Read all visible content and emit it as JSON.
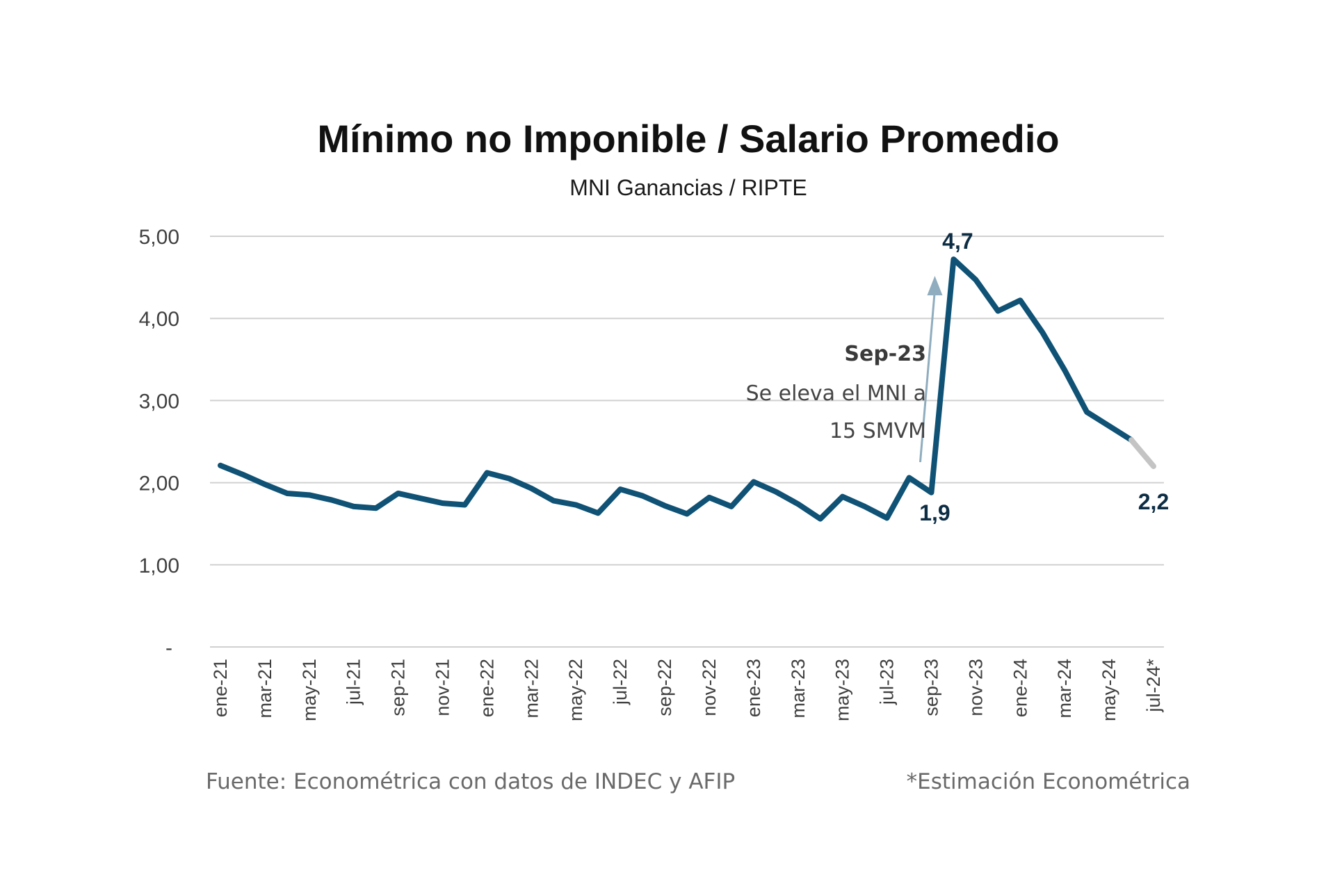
{
  "chart_data": {
    "type": "line",
    "title": "Mínimo no Imponible / Salario Promedio",
    "subtitle": "MNI Ganancias / RIPTE",
    "xlabel": "",
    "ylabel": "",
    "ylim": [
      0,
      5
    ],
    "grid": true,
    "legend": "none",
    "y_ticks": [
      {
        "value": 0,
        "label": "-"
      },
      {
        "value": 1,
        "label": "1,00"
      },
      {
        "value": 2,
        "label": "2,00"
      },
      {
        "value": 3,
        "label": "3,00"
      },
      {
        "value": 4,
        "label": "4,00"
      },
      {
        "value": 5,
        "label": "5,00"
      }
    ],
    "x": [
      "ene-21",
      "feb-21",
      "mar-21",
      "abr-21",
      "may-21",
      "jun-21",
      "jul-21",
      "ago-21",
      "sep-21",
      "oct-21",
      "nov-21",
      "dic-21",
      "ene-22",
      "feb-22",
      "mar-22",
      "abr-22",
      "may-22",
      "jun-22",
      "jul-22",
      "ago-22",
      "sep-22",
      "oct-22",
      "nov-22",
      "dic-22",
      "ene-23",
      "feb-23",
      "mar-23",
      "abr-23",
      "may-23",
      "jun-23",
      "jul-23",
      "ago-23",
      "sep-23",
      "oct-23",
      "nov-23",
      "dic-23",
      "ene-24",
      "feb-24",
      "mar-24",
      "abr-24",
      "may-24",
      "jun-24",
      "jul-24*"
    ],
    "x_tick_labels": [
      "ene-21",
      "mar-21",
      "may-21",
      "jul-21",
      "sep-21",
      "nov-21",
      "ene-22",
      "mar-22",
      "may-22",
      "jul-22",
      "sep-22",
      "nov-22",
      "ene-23",
      "mar-23",
      "may-23",
      "jul-23",
      "sep-23",
      "nov-23",
      "ene-24",
      "mar-24",
      "may-24",
      "jul-24*"
    ],
    "series": [
      {
        "name": "MNI Ganancias / RIPTE",
        "color": "#0f5275",
        "values": [
          2.21,
          2.1,
          1.98,
          1.87,
          1.85,
          1.79,
          1.71,
          1.69,
          1.87,
          1.81,
          1.75,
          1.73,
          2.12,
          2.05,
          1.93,
          1.78,
          1.73,
          1.63,
          1.92,
          1.84,
          1.72,
          1.62,
          1.82,
          1.71,
          2.01,
          1.89,
          1.74,
          1.56,
          1.83,
          1.71,
          1.57,
          2.06,
          1.88,
          4.72,
          4.47,
          4.09,
          4.22,
          3.83,
          3.37,
          2.86,
          2.69,
          2.52,
          2.2
        ]
      }
    ],
    "estimated_points": [
      "jul-24*"
    ],
    "estimate_color": "#c4c4c4",
    "data_labels": [
      {
        "x": "sep-23",
        "text": "1,9"
      },
      {
        "x": "oct-23",
        "text": "4,7"
      },
      {
        "x": "jul-24*",
        "text": "2,2"
      }
    ],
    "annotation": {
      "title": "Sep-23",
      "lines": [
        "Se eleva el MNI a",
        "15 SMVM"
      ],
      "arrow_color": "#8fadbe"
    },
    "footer": {
      "source": "Fuente: Econométrica con datos de INDEC y AFIP",
      "note": "*Estimación Econométrica"
    }
  }
}
